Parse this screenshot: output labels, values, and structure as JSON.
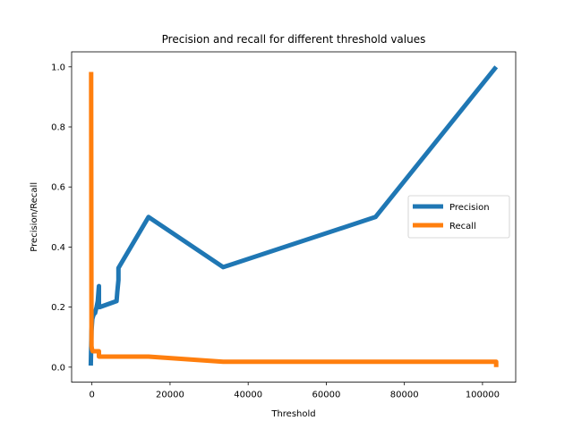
{
  "chart_data": {
    "type": "line",
    "title": "Precision and recall for different threshold values",
    "xlabel": "Threshold",
    "ylabel": "Precision/Recall",
    "xlim": [
      -5200,
      108500
    ],
    "ylim": [
      -0.05,
      1.05
    ],
    "xticks": [
      0,
      20000,
      40000,
      60000,
      80000,
      100000
    ],
    "xtick_labels": [
      "0",
      "20000",
      "40000",
      "60000",
      "80000",
      "100000"
    ],
    "yticks": [
      0.0,
      0.2,
      0.4,
      0.6,
      0.8,
      1.0
    ],
    "ytick_labels": [
      "0.0",
      "0.2",
      "0.4",
      "0.6",
      "0.8",
      "1.0"
    ],
    "grid": false,
    "legend_position": "center-right",
    "series": [
      {
        "name": "Precision",
        "color": "#1f77b4",
        "x": [
          -300,
          -100,
          100,
          300,
          600,
          800,
          1000,
          1200,
          1500,
          1800,
          1800,
          2000,
          2000,
          6300,
          6500,
          6800,
          6800,
          14500,
          33600,
          72600,
          103500
        ],
        "y": [
          0.005,
          0.12,
          0.16,
          0.17,
          0.18,
          0.18,
          0.19,
          0.2,
          0.22,
          0.27,
          0.2,
          0.2,
          0.2,
          0.22,
          0.25,
          0.29,
          0.33,
          0.5,
          0.333,
          0.5,
          1.0
        ]
      },
      {
        "name": "Recall",
        "color": "#ff7f0e",
        "x": [
          -200,
          -200,
          -150,
          -100,
          0,
          200,
          500,
          1000,
          1800,
          1800,
          2000,
          2000,
          14500,
          33600,
          72600,
          103000,
          103500,
          103500
        ],
        "y": [
          0.983,
          0.95,
          0.5,
          0.07,
          0.06,
          0.053,
          0.053,
          0.053,
          0.053,
          0.035,
          0.035,
          0.035,
          0.035,
          0.018,
          0.018,
          0.018,
          0.018,
          0.0
        ]
      }
    ]
  }
}
